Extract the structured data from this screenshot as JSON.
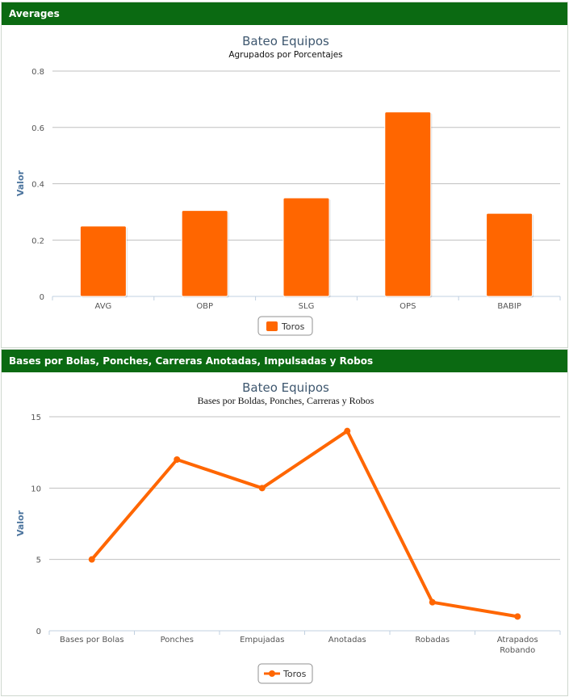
{
  "panels": [
    {
      "header": "Averages",
      "chart_data": {
        "type": "bar",
        "title": "Bateo Equipos",
        "subtitle": "Agrupados por Porcentajes",
        "xlabel": "",
        "ylabel": "Valor",
        "categories": [
          "AVG",
          "OBP",
          "SLG",
          "OPS",
          "BABIP"
        ],
        "series": [
          {
            "name": "Toros",
            "values": [
              0.25,
              0.305,
              0.35,
              0.655,
              0.295
            ]
          }
        ],
        "ylim": [
          0,
          0.8
        ],
        "yticks": [
          "0",
          "0.2",
          "0.4",
          "0.6",
          "0.8"
        ],
        "grid": true,
        "legend": "bottom-center",
        "color": "#ff6600"
      }
    },
    {
      "header": "Bases por Bolas, Ponches, Carreras Anotadas, Impulsadas y Robos",
      "chart_data": {
        "type": "line",
        "title": "Bateo Equipos",
        "subtitle": "Bases por Boldas, Ponches, Carreras y Robos",
        "xlabel": "",
        "ylabel": "Valor",
        "categories": [
          "Bases por Bolas",
          "Ponches",
          "Empujadas",
          "Anotadas",
          "Robadas",
          "Atrapados Robando"
        ],
        "series": [
          {
            "name": "Toros",
            "values": [
              5,
              12,
              10,
              14,
              2,
              1
            ]
          }
        ],
        "ylim": [
          0,
          15
        ],
        "yticks": [
          "0",
          "5",
          "10",
          "15"
        ],
        "grid": true,
        "legend": "bottom-center",
        "color": "#ff6600"
      }
    }
  ]
}
